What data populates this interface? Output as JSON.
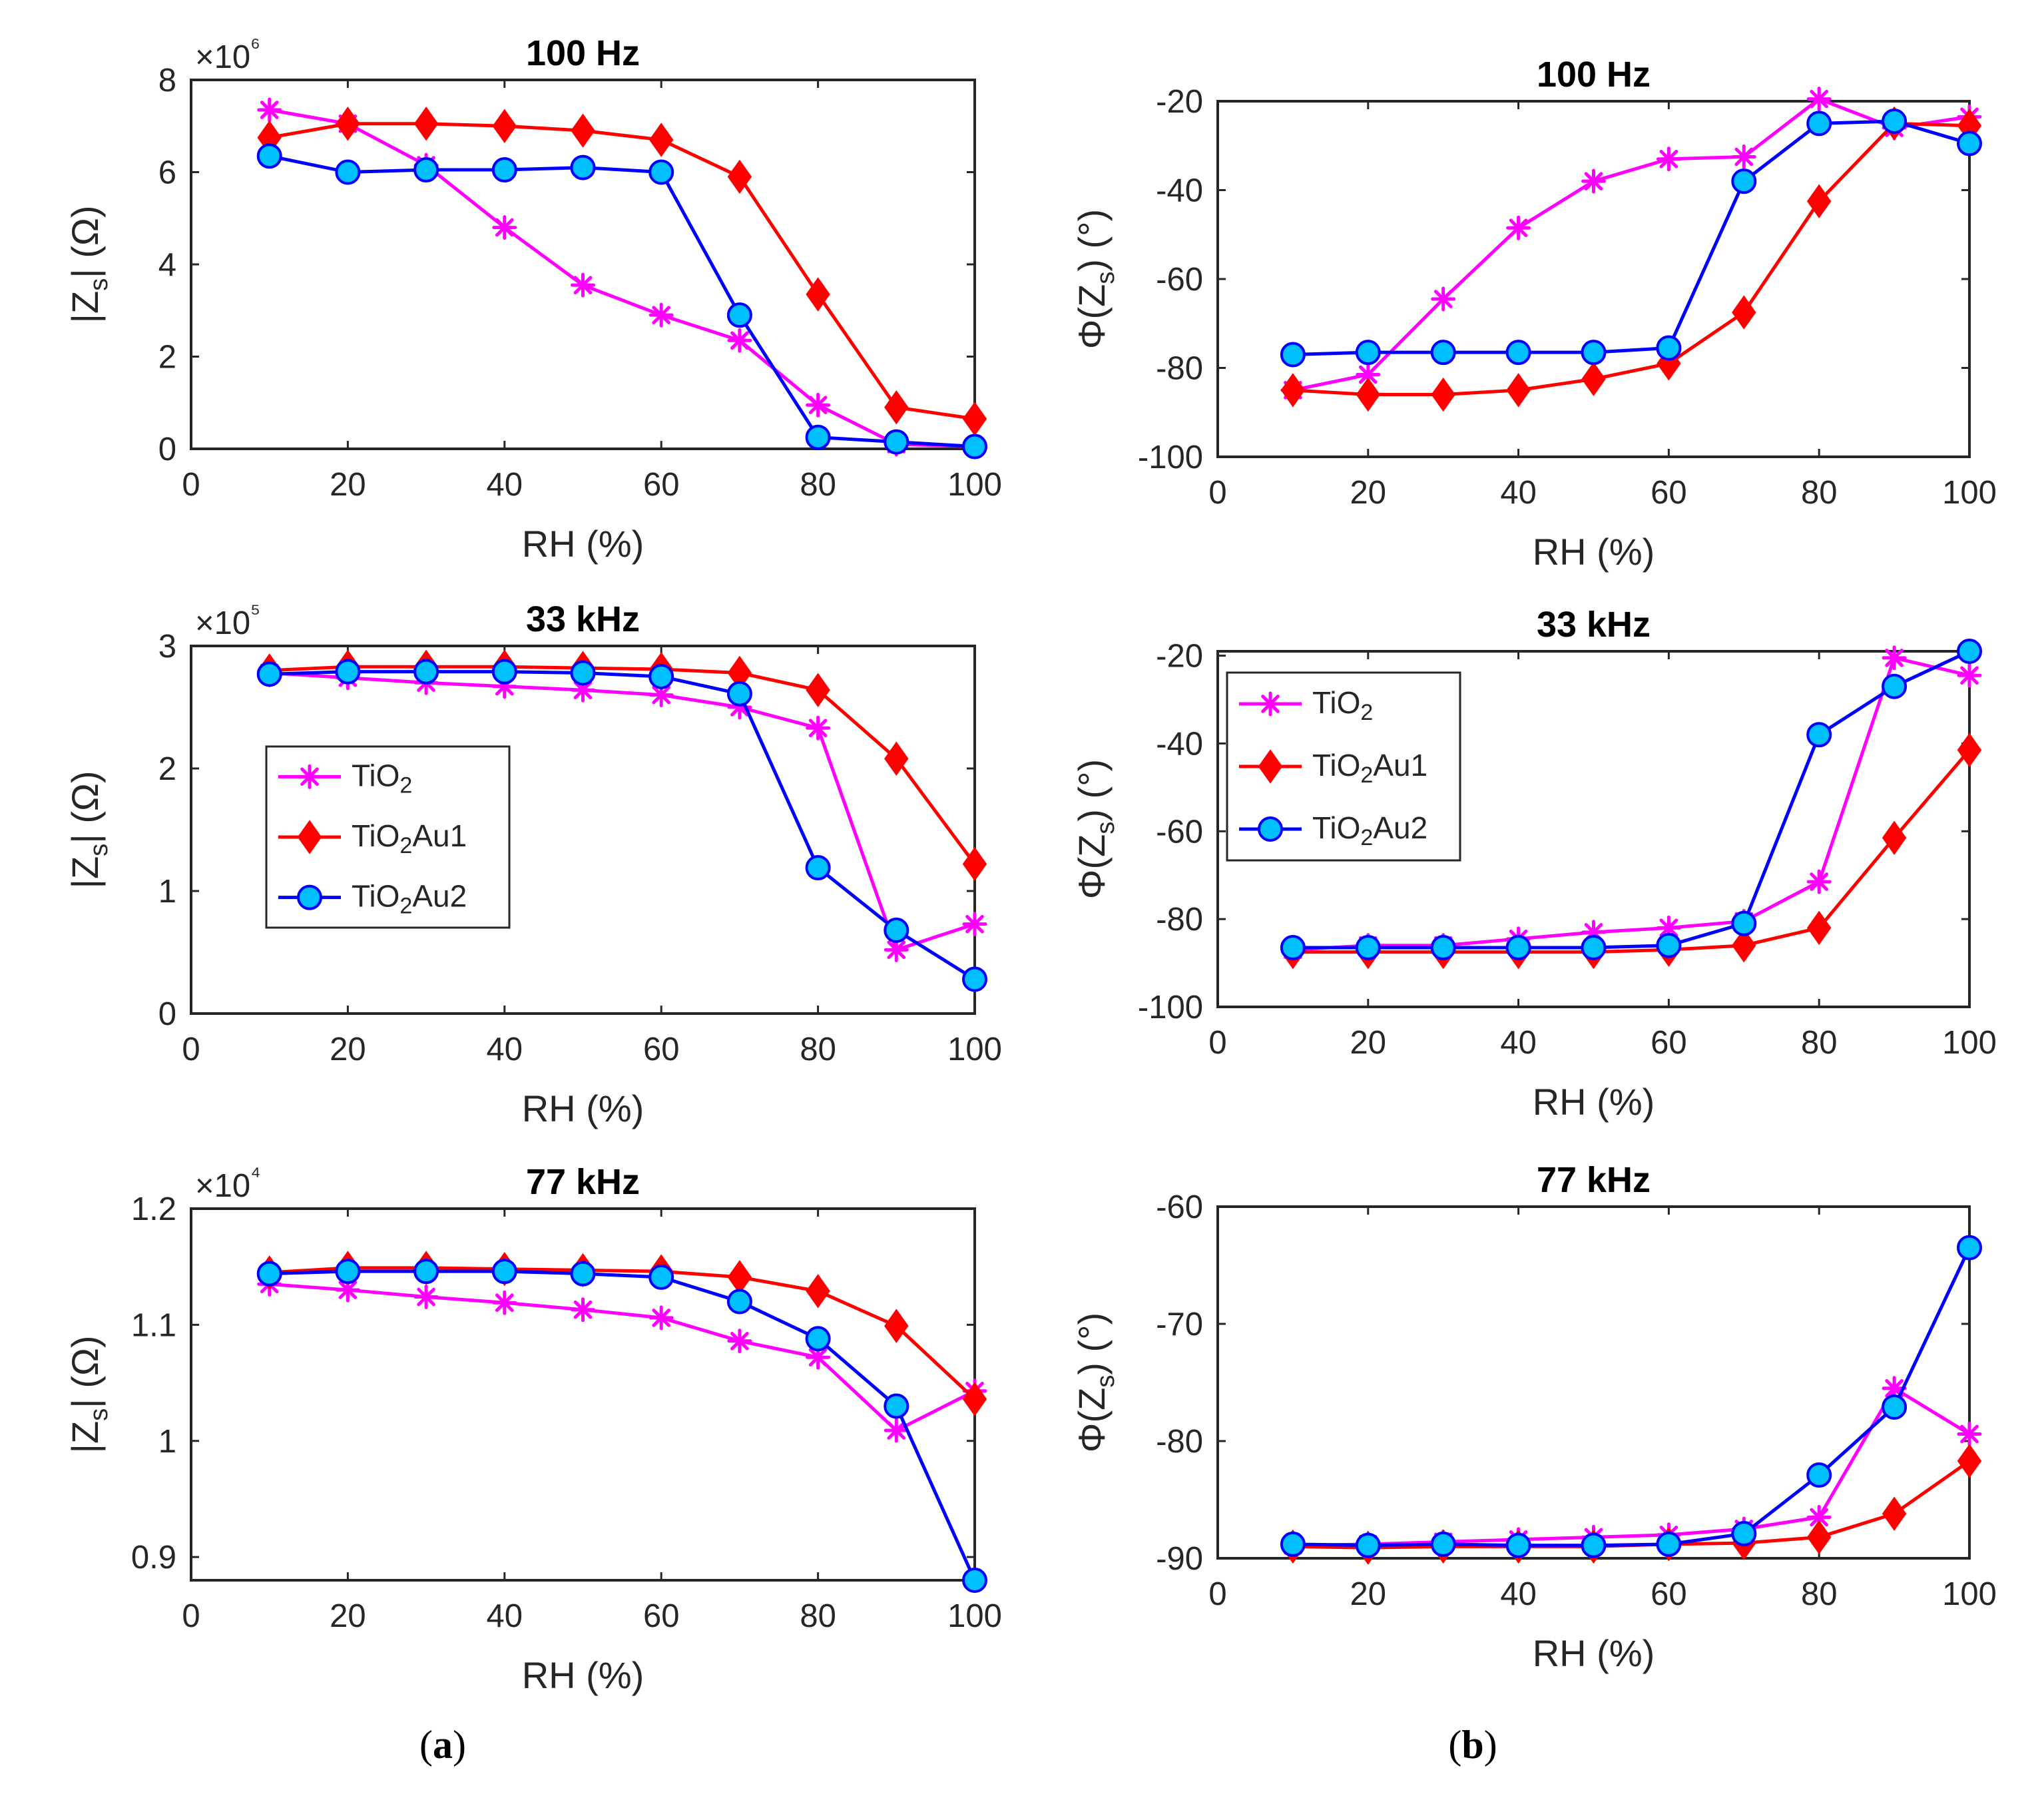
{
  "colors": {
    "TiO2": "#ff00ff",
    "TiO2Au1": "#ff0000",
    "TiO2Au2_line": "#0000ff",
    "TiO2Au2_fill": "#00bfff",
    "axis": "#262626"
  },
  "panel_labels": {
    "a": "(a)",
    "b": "(b)"
  },
  "chart_data": [
    {
      "type": "line",
      "id": "a1",
      "title": "100 Hz",
      "xlabel": "RH (%)",
      "ylabel": "|Zs| (Ω)",
      "y_exponent": "×10⁶",
      "xlim": [
        0,
        100
      ],
      "ylim": [
        0,
        8
      ],
      "xticks": [
        0,
        20,
        40,
        60,
        80,
        100
      ],
      "yticks": [
        0,
        2,
        4,
        6,
        8
      ],
      "ytick_labels": [
        "0",
        "2",
        "4",
        "6",
        "8"
      ],
      "x": [
        10,
        20,
        30,
        40,
        50,
        60,
        70,
        80,
        90,
        100
      ],
      "series": [
        {
          "name": "TiO2",
          "values": [
            7.35,
            7.05,
            6.15,
            4.8,
            3.55,
            2.9,
            2.35,
            0.95,
            0.1,
            0.05
          ]
        },
        {
          "name": "TiO2Au1",
          "values": [
            6.75,
            7.05,
            7.05,
            7.0,
            6.9,
            6.7,
            5.9,
            3.35,
            0.9,
            0.65
          ]
        },
        {
          "name": "TiO2Au2",
          "values": [
            6.35,
            6.0,
            6.05,
            6.05,
            6.1,
            6.0,
            2.9,
            0.25,
            0.15,
            0.05
          ]
        }
      ]
    },
    {
      "type": "line",
      "id": "b1",
      "title": "100 Hz",
      "xlabel": "RH (%)",
      "ylabel": "Φ(Zs) (°)",
      "xlim": [
        0,
        100
      ],
      "ylim": [
        -100,
        -20
      ],
      "xticks": [
        0,
        20,
        40,
        60,
        80,
        100
      ],
      "yticks": [
        -100,
        -80,
        -60,
        -40,
        -20
      ],
      "ytick_labels": [
        "-100",
        "-80",
        "-60",
        "-40",
        "-20"
      ],
      "x": [
        10,
        20,
        30,
        40,
        50,
        60,
        70,
        80,
        90,
        100
      ],
      "series": [
        {
          "name": "TiO2",
          "values": [
            -85,
            -81.5,
            -64.5,
            -48.5,
            -38,
            -33,
            -32.5,
            -19.5,
            -26,
            -23.5
          ]
        },
        {
          "name": "TiO2Au1",
          "values": [
            -85,
            -86,
            -86,
            -85,
            -82.5,
            -79,
            -67.5,
            -42.5,
            -25,
            -25.5
          ]
        },
        {
          "name": "TiO2Au2",
          "values": [
            -77,
            -76.5,
            -76.5,
            -76.5,
            -76.5,
            -75.5,
            -38,
            -25,
            -24.5,
            -29.5
          ]
        }
      ]
    },
    {
      "type": "line",
      "id": "a2",
      "title": "33 kHz",
      "xlabel": "RH (%)",
      "ylabel": "|Zs| (Ω)",
      "y_exponent": "×10⁵",
      "xlim": [
        0,
        100
      ],
      "ylim": [
        0,
        3
      ],
      "xticks": [
        0,
        20,
        40,
        60,
        80,
        100
      ],
      "yticks": [
        0,
        1,
        2,
        3
      ],
      "ytick_labels": [
        "0",
        "1",
        "2",
        "3"
      ],
      "x": [
        10,
        20,
        30,
        40,
        50,
        60,
        70,
        80,
        90,
        100
      ],
      "legend": {
        "entries": [
          "TiO2",
          "TiO2Au1",
          "TiO2Au2"
        ],
        "position": "center-left"
      },
      "series": [
        {
          "name": "TiO2",
          "values": [
            2.78,
            2.74,
            2.7,
            2.67,
            2.64,
            2.6,
            2.5,
            2.33,
            0.52,
            0.73
          ]
        },
        {
          "name": "TiO2Au1",
          "values": [
            2.8,
            2.83,
            2.83,
            2.83,
            2.82,
            2.81,
            2.78,
            2.64,
            2.08,
            1.22
          ]
        },
        {
          "name": "TiO2Au2",
          "values": [
            2.77,
            2.79,
            2.79,
            2.79,
            2.78,
            2.75,
            2.61,
            1.19,
            0.68,
            0.28
          ]
        }
      ]
    },
    {
      "type": "line",
      "id": "b2",
      "title": "33 kHz",
      "xlabel": "RH (%)",
      "ylabel": "Φ(Zs) (°)",
      "xlim": [
        0,
        100
      ],
      "ylim": [
        -100,
        -19
      ],
      "xticks": [
        0,
        20,
        40,
        60,
        80,
        100
      ],
      "yticks": [
        -100,
        -80,
        -60,
        -40,
        -20
      ],
      "ytick_labels": [
        "-100",
        "-80",
        "-60",
        "-40",
        "-20"
      ],
      "x": [
        10,
        20,
        30,
        40,
        50,
        60,
        70,
        80,
        90,
        100
      ],
      "legend": {
        "entries": [
          "TiO2",
          "TiO2Au1",
          "TiO2Au2"
        ],
        "position": "top-left"
      },
      "series": [
        {
          "name": "TiO2",
          "values": [
            -87,
            -86,
            -86,
            -84.5,
            -83,
            -82,
            -80.5,
            -71.5,
            -20.5,
            -24.5
          ]
        },
        {
          "name": "TiO2Au1",
          "values": [
            -87.5,
            -87.5,
            -87.5,
            -87.5,
            -87.5,
            -87,
            -86,
            -82,
            -61.5,
            -41.5
          ]
        },
        {
          "name": "TiO2Au2",
          "values": [
            -86.5,
            -86.5,
            -86.5,
            -86.5,
            -86.5,
            -86,
            -81,
            -38,
            -27,
            -19
          ]
        }
      ]
    },
    {
      "type": "line",
      "id": "a3",
      "title": "77 kHz",
      "xlabel": "RH (%)",
      "ylabel": "|Zs| (Ω)",
      "y_exponent": "×10⁴",
      "xlim": [
        0,
        100
      ],
      "ylim": [
        0.88,
        1.2
      ],
      "xticks": [
        0,
        20,
        40,
        60,
        80,
        100
      ],
      "yticks": [
        0.9,
        1.0,
        1.1,
        1.2
      ],
      "ytick_labels": [
        "0.9",
        "1",
        "1.1",
        "1.2"
      ],
      "x": [
        10,
        20,
        30,
        40,
        50,
        60,
        70,
        80,
        90,
        100
      ],
      "series": [
        {
          "name": "TiO2",
          "values": [
            1.135,
            1.13,
            1.124,
            1.119,
            1.113,
            1.106,
            1.086,
            1.072,
            1.009,
            1.043
          ]
        },
        {
          "name": "TiO2Au1",
          "values": [
            1.145,
            1.149,
            1.149,
            1.148,
            1.147,
            1.146,
            1.141,
            1.129,
            1.099,
            1.036
          ]
        },
        {
          "name": "TiO2Au2",
          "values": [
            1.144,
            1.146,
            1.146,
            1.146,
            1.144,
            1.141,
            1.12,
            1.088,
            1.03,
            0.88
          ]
        }
      ]
    },
    {
      "type": "line",
      "id": "b3",
      "title": "77 kHz",
      "xlabel": "RH (%)",
      "ylabel": "Φ(Zs) (°)",
      "xlim": [
        0,
        100
      ],
      "ylim": [
        -90,
        -60
      ],
      "xticks": [
        0,
        20,
        40,
        60,
        80,
        100
      ],
      "yticks": [
        -90,
        -80,
        -70,
        -60
      ],
      "ytick_labels": [
        "-90",
        "-80",
        "-70",
        "-60"
      ],
      "x": [
        10,
        20,
        30,
        40,
        50,
        60,
        70,
        80,
        90,
        100
      ],
      "series": [
        {
          "name": "TiO2",
          "values": [
            -88.9,
            -88.8,
            -88.6,
            -88.4,
            -88.2,
            -88,
            -87.5,
            -86.5,
            -75.5,
            -79.4
          ]
        },
        {
          "name": "TiO2Au1",
          "values": [
            -89,
            -89.1,
            -89,
            -89,
            -89,
            -88.8,
            -88.7,
            -88.2,
            -86.2,
            -81.7
          ]
        },
        {
          "name": "TiO2Au2",
          "values": [
            -88.8,
            -88.9,
            -88.8,
            -88.9,
            -88.9,
            -88.8,
            -87.9,
            -82.9,
            -77.1,
            -63.5
          ]
        }
      ]
    }
  ]
}
